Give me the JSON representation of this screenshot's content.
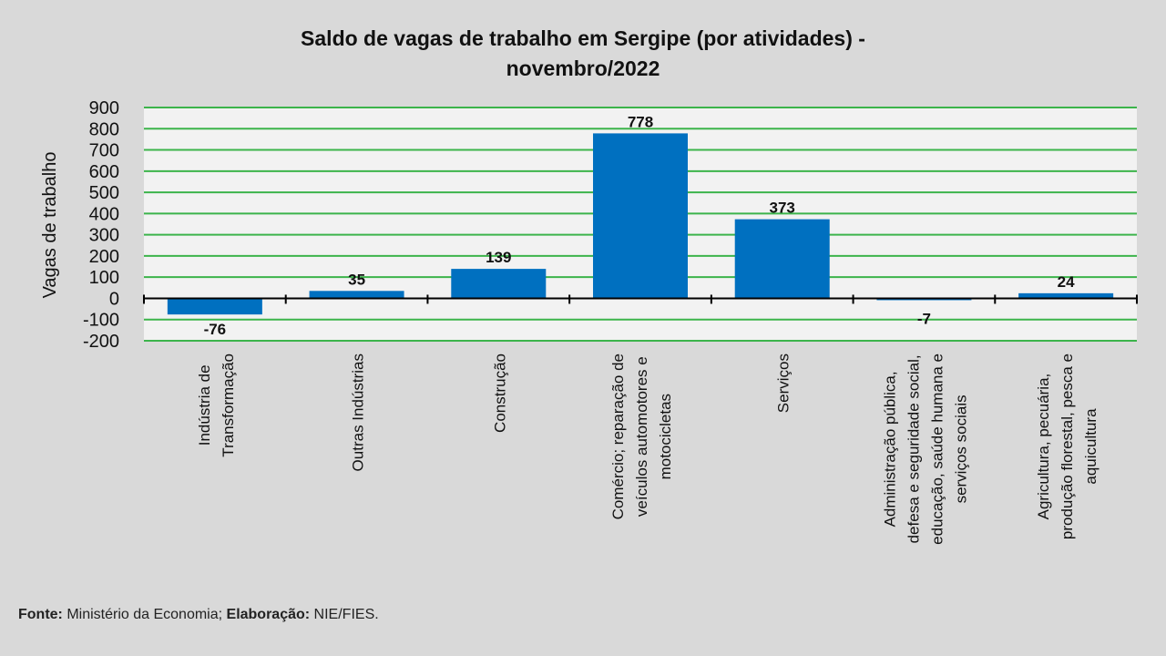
{
  "chart_data": {
    "type": "bar",
    "title_lines": [
      "Saldo de vagas de trabalho  em Sergipe (por atividades) -",
      "novembro/2022"
    ],
    "ylabel": "Vagas de trabalho",
    "xlabel": "",
    "ylim": [
      -200,
      900
    ],
    "yticks": [
      900,
      800,
      700,
      600,
      500,
      400,
      300,
      200,
      100,
      0,
      -100,
      -200
    ],
    "grid": true,
    "categories": [
      [
        "Indústria de",
        "Transformação"
      ],
      [
        "Outras Indústrias"
      ],
      [
        "Construção"
      ],
      [
        "Comércio; reparação de",
        "veículos automotores e",
        "motocicletas"
      ],
      [
        "Serviços"
      ],
      [
        "Administração pública,",
        "defesa e seguridade social,",
        "educação, saúde humana e",
        "serviços sociais"
      ],
      [
        "Agricultura, pecuária,",
        "produção florestal, pesca e",
        "aquicultura"
      ]
    ],
    "values": [
      -76,
      35,
      139,
      778,
      373,
      -7,
      24
    ],
    "bar_color": "#0070c0",
    "grid_color": "#3cb44b"
  },
  "footer": {
    "source_label": "Fonte:",
    "source_text": " Ministério da Economia; ",
    "elab_label": "Elaboração:",
    "elab_text": " NIE/FIES."
  }
}
